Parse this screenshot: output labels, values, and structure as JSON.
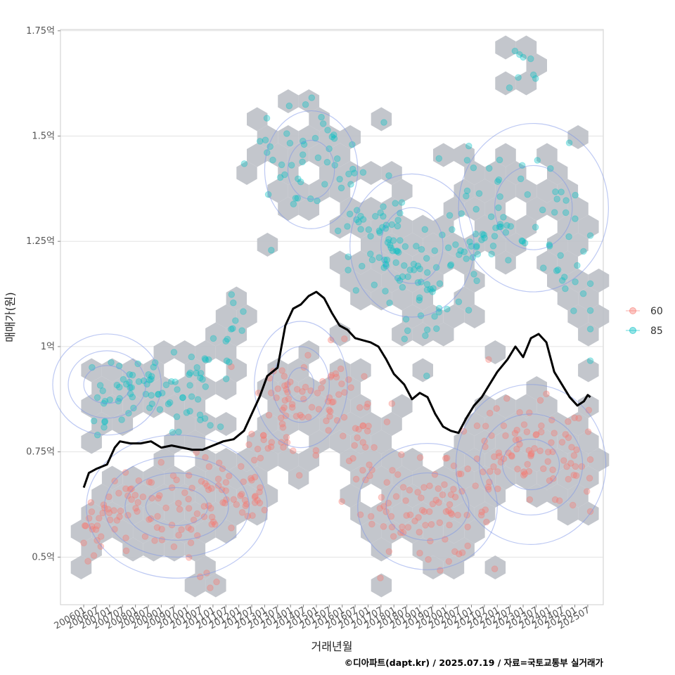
{
  "chart_data": {
    "type": "scatter",
    "xlabel": "거래년월",
    "ylabel": "매매가(원)",
    "caption": "©디아파트(dapt.kr) / 2025.07.19 / 자료=국토교통부 실거래가",
    "x_ticks": [
      "200601",
      "200607",
      "200701",
      "200707",
      "200801",
      "200807",
      "200901",
      "200907",
      "201001",
      "201007",
      "201101",
      "201107",
      "201201",
      "201207",
      "201301",
      "201307",
      "201401",
      "201407",
      "201501",
      "201507",
      "201601",
      "201607",
      "201701",
      "201707",
      "201801",
      "201807",
      "201901",
      "201907",
      "202001",
      "202007",
      "202101",
      "202107",
      "202201",
      "202207",
      "202301",
      "202307",
      "202401",
      "202407",
      "202501",
      "202507"
    ],
    "y_ticks": [
      {
        "value": 0.5,
        "label": "0.5억"
      },
      {
        "value": 0.75,
        "label": "0.75억"
      },
      {
        "value": 1.0,
        "label": "1억"
      },
      {
        "value": 1.25,
        "label": "1.25억"
      },
      {
        "value": 1.5,
        "label": "1.5억"
      },
      {
        "value": 1.75,
        "label": "1.75억"
      }
    ],
    "xlim": [
      2005.1,
      2026.1
    ],
    "ylim": [
      0.387,
      1.753
    ],
    "grid": true,
    "legend_position": "right",
    "legend": [
      {
        "label": "60",
        "color": "#F8766D"
      },
      {
        "label": "85",
        "color": "#00BFC4"
      }
    ],
    "series": [
      {
        "name": "60",
        "color": "#F8766D",
        "clusters": [
          {
            "x": 2006.4,
            "y": 0.56,
            "sx": 0.3,
            "sy": 0.05,
            "n": 18
          },
          {
            "x": 2007.8,
            "y": 0.62,
            "sx": 0.5,
            "sy": 0.04,
            "n": 30
          },
          {
            "x": 2009.5,
            "y": 0.6,
            "sx": 0.8,
            "sy": 0.05,
            "n": 30
          },
          {
            "x": 2011.3,
            "y": 0.64,
            "sx": 0.8,
            "sy": 0.05,
            "n": 45
          },
          {
            "x": 2012.5,
            "y": 0.7,
            "sx": 0.3,
            "sy": 0.06,
            "n": 14
          },
          {
            "x": 2013.8,
            "y": 0.86,
            "sx": 0.6,
            "sy": 0.08,
            "n": 45
          },
          {
            "x": 2015.6,
            "y": 0.88,
            "sx": 0.6,
            "sy": 0.06,
            "n": 40
          },
          {
            "x": 2016.9,
            "y": 0.76,
            "sx": 0.5,
            "sy": 0.06,
            "n": 18
          },
          {
            "x": 2018.3,
            "y": 0.62,
            "sx": 0.8,
            "sy": 0.05,
            "n": 40
          },
          {
            "x": 2020.1,
            "y": 0.6,
            "sx": 0.8,
            "sy": 0.05,
            "n": 40
          },
          {
            "x": 2022.1,
            "y": 0.74,
            "sx": 1.0,
            "sy": 0.07,
            "n": 50
          },
          {
            "x": 2024.1,
            "y": 0.74,
            "sx": 0.9,
            "sy": 0.07,
            "n": 40
          },
          {
            "x": 2025.2,
            "y": 0.67,
            "sx": 0.3,
            "sy": 0.04,
            "n": 10
          },
          {
            "x": 2010.8,
            "y": 0.46,
            "sx": 0.4,
            "sy": 0.02,
            "n": 4
          }
        ]
      },
      {
        "name": "85",
        "color": "#00BFC4",
        "clusters": [
          {
            "x": 2006.9,
            "y": 0.84,
            "sx": 0.5,
            "sy": 0.05,
            "n": 15
          },
          {
            "x": 2008.6,
            "y": 0.91,
            "sx": 0.8,
            "sy": 0.04,
            "n": 40
          },
          {
            "x": 2010.6,
            "y": 0.9,
            "sx": 0.7,
            "sy": 0.05,
            "n": 30
          },
          {
            "x": 2011.6,
            "y": 1.06,
            "sx": 0.4,
            "sy": 0.04,
            "n": 10
          },
          {
            "x": 2013.6,
            "y": 1.43,
            "sx": 0.6,
            "sy": 0.05,
            "n": 20
          },
          {
            "x": 2014.9,
            "y": 1.47,
            "sx": 0.6,
            "sy": 0.07,
            "n": 22
          },
          {
            "x": 2016.4,
            "y": 1.37,
            "sx": 0.6,
            "sy": 0.08,
            "n": 18
          },
          {
            "x": 2017.9,
            "y": 1.21,
            "sx": 0.8,
            "sy": 0.08,
            "n": 60
          },
          {
            "x": 2019.4,
            "y": 1.13,
            "sx": 0.7,
            "sy": 0.07,
            "n": 25
          },
          {
            "x": 2020.9,
            "y": 1.22,
            "sx": 0.7,
            "sy": 0.08,
            "n": 25
          },
          {
            "x": 2022.1,
            "y": 1.36,
            "sx": 0.9,
            "sy": 0.08,
            "n": 40
          },
          {
            "x": 2022.9,
            "y": 1.65,
            "sx": 0.4,
            "sy": 0.04,
            "n": 8
          },
          {
            "x": 2024.4,
            "y": 1.25,
            "sx": 0.6,
            "sy": 0.1,
            "n": 20
          },
          {
            "x": 2025.3,
            "y": 1.12,
            "sx": 0.4,
            "sy": 0.08,
            "n": 8
          }
        ]
      }
    ],
    "trend_line": {
      "name": "",
      "color": "#000000",
      "points": [
        [
          2006.0,
          0.665
        ],
        [
          2006.2,
          0.7
        ],
        [
          2006.5,
          0.71
        ],
        [
          2006.9,
          0.72
        ],
        [
          2007.2,
          0.76
        ],
        [
          2007.4,
          0.775
        ],
        [
          2007.8,
          0.77
        ],
        [
          2008.2,
          0.77
        ],
        [
          2008.6,
          0.775
        ],
        [
          2009.0,
          0.76
        ],
        [
          2009.4,
          0.765
        ],
        [
          2009.8,
          0.76
        ],
        [
          2010.2,
          0.755
        ],
        [
          2010.6,
          0.755
        ],
        [
          2011.0,
          0.765
        ],
        [
          2011.4,
          0.775
        ],
        [
          2011.8,
          0.78
        ],
        [
          2012.2,
          0.8
        ],
        [
          2012.5,
          0.84
        ],
        [
          2012.8,
          0.88
        ],
        [
          2013.1,
          0.93
        ],
        [
          2013.5,
          0.95
        ],
        [
          2013.8,
          1.05
        ],
        [
          2014.1,
          1.09
        ],
        [
          2014.4,
          1.1
        ],
        [
          2014.7,
          1.12
        ],
        [
          2015.0,
          1.13
        ],
        [
          2015.3,
          1.115
        ],
        [
          2015.6,
          1.08
        ],
        [
          2015.9,
          1.05
        ],
        [
          2016.2,
          1.04
        ],
        [
          2016.5,
          1.02
        ],
        [
          2016.8,
          1.015
        ],
        [
          2017.1,
          1.01
        ],
        [
          2017.4,
          1.0
        ],
        [
          2017.7,
          0.97
        ],
        [
          2018.0,
          0.935
        ],
        [
          2018.4,
          0.91
        ],
        [
          2018.7,
          0.875
        ],
        [
          2019.0,
          0.89
        ],
        [
          2019.3,
          0.88
        ],
        [
          2019.6,
          0.84
        ],
        [
          2019.9,
          0.81
        ],
        [
          2020.2,
          0.8
        ],
        [
          2020.5,
          0.795
        ],
        [
          2020.8,
          0.83
        ],
        [
          2021.1,
          0.86
        ],
        [
          2021.4,
          0.88
        ],
        [
          2021.7,
          0.91
        ],
        [
          2022.0,
          0.94
        ],
        [
          2022.4,
          0.97
        ],
        [
          2022.7,
          1.0
        ],
        [
          2023.0,
          0.975
        ],
        [
          2023.3,
          1.02
        ],
        [
          2023.6,
          1.03
        ],
        [
          2023.9,
          1.01
        ],
        [
          2024.2,
          0.94
        ],
        [
          2024.5,
          0.91
        ],
        [
          2024.8,
          0.88
        ],
        [
          2025.1,
          0.86
        ],
        [
          2025.35,
          0.87
        ],
        [
          2025.5,
          0.885
        ],
        [
          2025.6,
          0.88
        ]
      ]
    },
    "density_contours": [
      {
        "x": 2006.9,
        "y": 0.91,
        "rx": 2.1,
        "ry": 0.12
      },
      {
        "x": 2006.9,
        "y": 0.91,
        "rx": 1.5,
        "ry": 0.08
      },
      {
        "x": 2006.9,
        "y": 0.91,
        "rx": 0.9,
        "ry": 0.045
      },
      {
        "x": 2009.6,
        "y": 0.62,
        "rx": 3.5,
        "ry": 0.17
      },
      {
        "x": 2009.6,
        "y": 0.62,
        "rx": 2.8,
        "ry": 0.12
      },
      {
        "x": 2009.6,
        "y": 0.62,
        "rx": 2.0,
        "ry": 0.08
      },
      {
        "x": 2009.6,
        "y": 0.62,
        "rx": 1.2,
        "ry": 0.045
      },
      {
        "x": 2014.4,
        "y": 0.91,
        "rx": 1.8,
        "ry": 0.15
      },
      {
        "x": 2014.4,
        "y": 0.91,
        "rx": 1.1,
        "ry": 0.09
      },
      {
        "x": 2014.4,
        "y": 0.91,
        "rx": 0.5,
        "ry": 0.04
      },
      {
        "x": 2014.8,
        "y": 1.42,
        "rx": 1.8,
        "ry": 0.14
      },
      {
        "x": 2014.8,
        "y": 1.42,
        "rx": 0.9,
        "ry": 0.07
      },
      {
        "x": 2018.7,
        "y": 1.24,
        "rx": 2.4,
        "ry": 0.17
      },
      {
        "x": 2018.7,
        "y": 1.24,
        "rx": 1.2,
        "ry": 0.09
      },
      {
        "x": 2019.3,
        "y": 0.62,
        "rx": 2.7,
        "ry": 0.15
      },
      {
        "x": 2019.3,
        "y": 0.62,
        "rx": 1.6,
        "ry": 0.08
      },
      {
        "x": 2023.3,
        "y": 0.72,
        "rx": 2.9,
        "ry": 0.19
      },
      {
        "x": 2023.3,
        "y": 0.72,
        "rx": 2.0,
        "ry": 0.12
      },
      {
        "x": 2023.3,
        "y": 0.72,
        "rx": 1.1,
        "ry": 0.06
      },
      {
        "x": 2023.4,
        "y": 1.33,
        "rx": 2.9,
        "ry": 0.2
      },
      {
        "x": 2023.4,
        "y": 1.33,
        "rx": 1.5,
        "ry": 0.1
      }
    ]
  }
}
